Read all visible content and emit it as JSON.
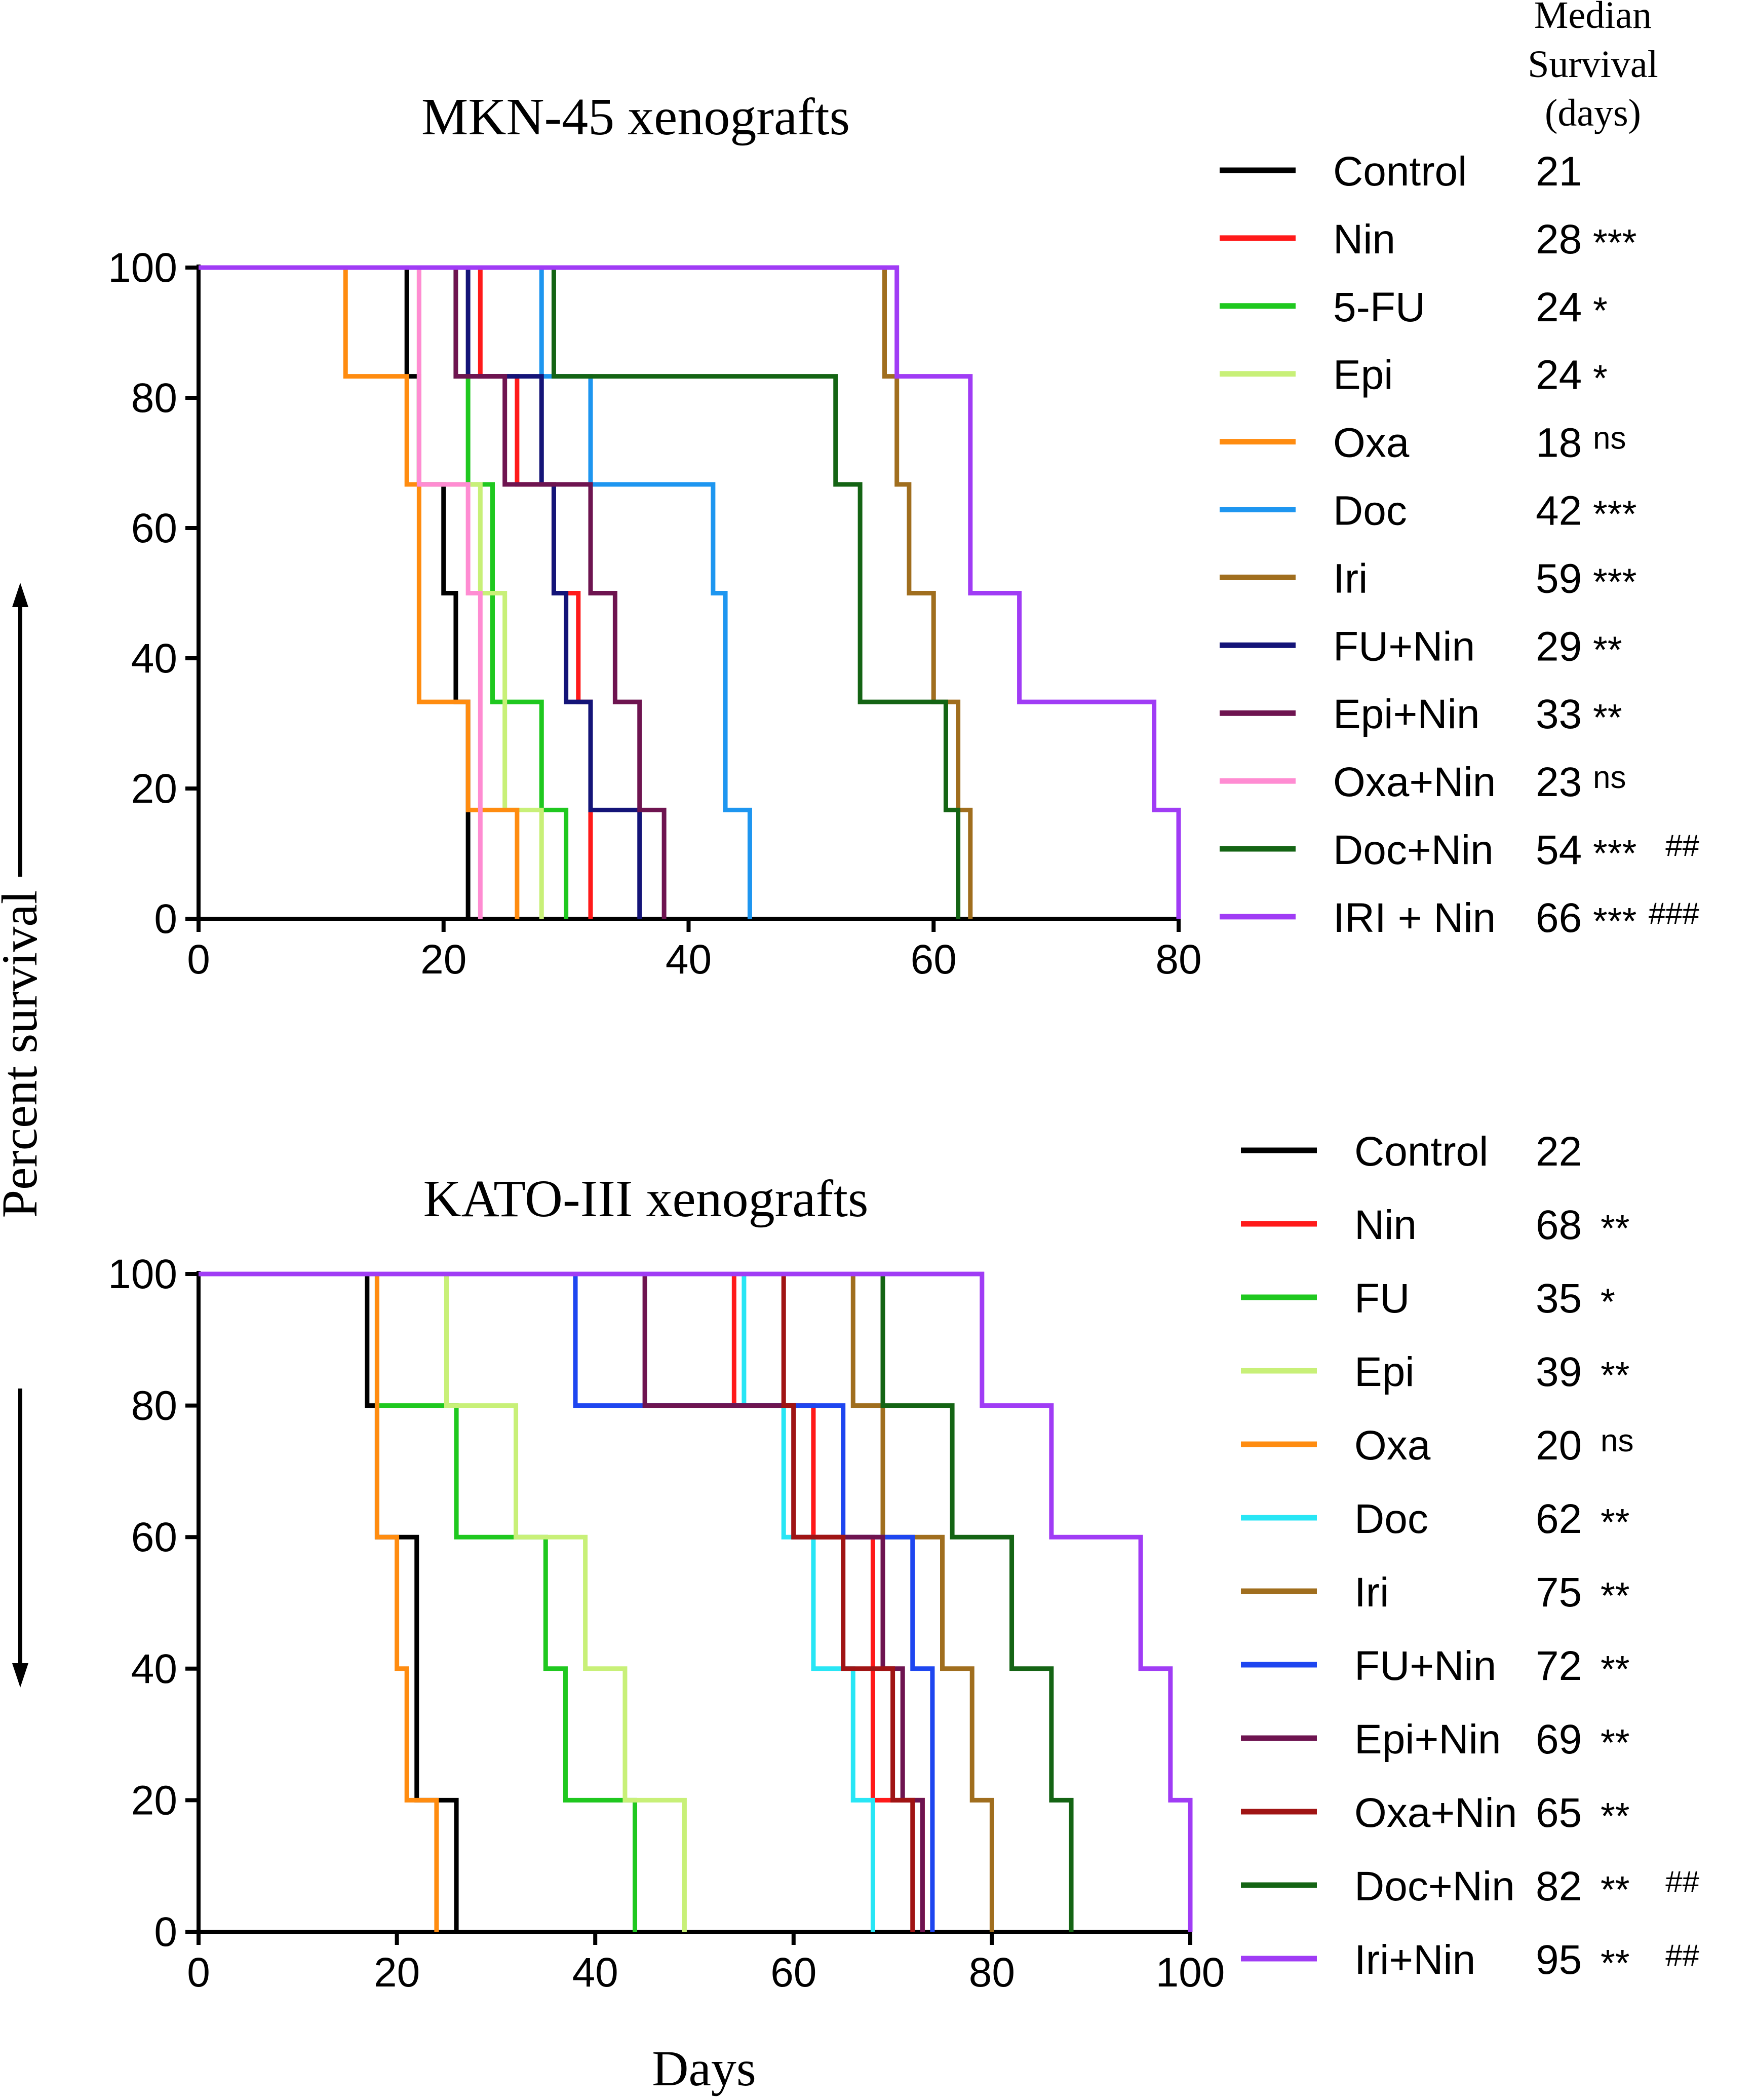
{
  "figure": {
    "y_axis_label": "Percent survival",
    "x_axis_label": "Days",
    "median_header": [
      "Median",
      "Survival",
      "(days)"
    ]
  },
  "colors": {
    "Control": "#000000",
    "Nin": "#ff1a1a",
    "FU": "#1fc81f",
    "Epi": "#c8f078",
    "Oxa": "#ff8c10",
    "Doc_top": "#1e96f0",
    "Doc_bottom": "#28e6f5",
    "Iri": "#a06e1e",
    "FU+Nin_top": "#141478",
    "FU+Nin_bottom": "#1e46f0",
    "Epi+Nin": "#6e1450",
    "Oxa+Nin_top": "#ff8cd2",
    "Oxa+Nin_bottom": "#a01414",
    "Doc+Nin": "#146414",
    "Iri+Nin": "#a03cf5"
  },
  "chart_data": [
    {
      "type": "line",
      "subtype": "kaplan-meier-step",
      "title": "MKN-45 xenografts",
      "xlabel": "Days",
      "ylabel": "Percent survival",
      "xlim": [
        0,
        80
      ],
      "ylim": [
        0,
        100
      ],
      "xticks": [
        0,
        20,
        40,
        60,
        80
      ],
      "yticks": [
        0,
        20,
        40,
        60,
        80,
        100
      ],
      "series": [
        {
          "name": "Control",
          "color_key": "Control",
          "median": "21",
          "sig": "",
          "sig2": "",
          "x": [
            0,
            17,
            18,
            20,
            21,
            22
          ],
          "y": [
            100,
            83.3,
            66.7,
            50,
            33.3,
            0
          ]
        },
        {
          "name": "Nin",
          "color_key": "Nin",
          "median": "28",
          "sig": "***",
          "sig2": "",
          "x": [
            0,
            23,
            26,
            29,
            31,
            32
          ],
          "y": [
            100,
            83.3,
            66.7,
            50,
            33.3,
            0
          ]
        },
        {
          "name": "5-FU",
          "color_key": "FU",
          "median": "24",
          "sig": "*",
          "sig2": "",
          "x": [
            0,
            21,
            22,
            24,
            28,
            30
          ],
          "y": [
            100,
            83.3,
            66.7,
            33.3,
            16.7,
            0
          ]
        },
        {
          "name": "Epi",
          "color_key": "Epi",
          "median": "24",
          "sig": "*",
          "sig2": "",
          "x": [
            0,
            18,
            23,
            25,
            28
          ],
          "y": [
            100,
            66.7,
            50,
            16.7,
            0
          ]
        },
        {
          "name": "Oxa",
          "color_key": "Oxa",
          "median": "18",
          "sig": "ns",
          "sig2": "",
          "x": [
            0,
            12,
            17,
            18,
            22,
            26
          ],
          "y": [
            100,
            83.3,
            66.7,
            33.3,
            16.7,
            0
          ]
        },
        {
          "name": "Doc",
          "color_key": "Doc_top",
          "median": "42",
          "sig": "***",
          "sig2": "",
          "x": [
            0,
            28,
            32,
            42,
            43,
            45
          ],
          "y": [
            100,
            83.3,
            66.7,
            50,
            16.7,
            0
          ]
        },
        {
          "name": "Iri",
          "color_key": "Iri",
          "median": "59",
          "sig": "***",
          "sig2": "",
          "x": [
            0,
            56,
            57,
            58,
            60,
            62,
            63
          ],
          "y": [
            100,
            83.3,
            66.7,
            50,
            33.3,
            16.7,
            0
          ]
        },
        {
          "name": "FU+Nin",
          "color_key": "FU+Nin_top",
          "median": "29",
          "sig": "**",
          "sig2": "",
          "x": [
            0,
            22,
            28,
            29,
            30,
            32,
            36
          ],
          "y": [
            100,
            83.3,
            66.7,
            50,
            33.3,
            16.7,
            0
          ]
        },
        {
          "name": "Epi+Nin",
          "color_key": "Epi+Nin",
          "median": "33",
          "sig": "**",
          "sig2": "",
          "x": [
            0,
            21,
            25,
            32,
            34,
            36,
            38
          ],
          "y": [
            100,
            83.3,
            66.7,
            50,
            33.3,
            16.7,
            0
          ]
        },
        {
          "name": "Oxa+Nin",
          "color_key": "Oxa+Nin_top",
          "median": "23",
          "sig": "ns",
          "sig2": "",
          "x": [
            0,
            18,
            22,
            23
          ],
          "y": [
            100,
            66.7,
            50,
            0
          ]
        },
        {
          "name": "Doc+Nin",
          "color_key": "Doc+Nin",
          "median": "54",
          "sig": "***",
          "sig2": "##",
          "x": [
            0,
            29,
            52,
            54,
            61,
            62
          ],
          "y": [
            100,
            83.3,
            66.7,
            33.3,
            16.7,
            0
          ]
        },
        {
          "name": "IRI + Nin",
          "color_key": "Iri+Nin",
          "median": "66",
          "sig": "***",
          "sig2": "###",
          "x": [
            0,
            57,
            63,
            67,
            78,
            80
          ],
          "y": [
            100,
            83.3,
            50,
            33.3,
            16.7,
            0
          ]
        }
      ]
    },
    {
      "type": "line",
      "subtype": "kaplan-meier-step",
      "title": "KATO-III xenografts",
      "xlabel": "Days",
      "ylabel": "Percent survival",
      "xlim": [
        0,
        100
      ],
      "ylim": [
        0,
        100
      ],
      "xticks": [
        0,
        20,
        40,
        60,
        80,
        100
      ],
      "yticks": [
        0,
        20,
        40,
        60,
        80,
        100
      ],
      "series": [
        {
          "name": "Control",
          "color_key": "Control",
          "median": "22",
          "sig": "",
          "sig2": "",
          "x": [
            0,
            17,
            18,
            22,
            26
          ],
          "y": [
            100,
            80,
            60,
            20,
            0
          ]
        },
        {
          "name": "Nin",
          "color_key": "Nin",
          "median": "68",
          "sig": "**",
          "sig2": "",
          "x": [
            0,
            54,
            62,
            68,
            73
          ],
          "y": [
            100,
            80,
            60,
            20,
            0
          ]
        },
        {
          "name": "FU",
          "color_key": "FU",
          "median": "35",
          "sig": "*",
          "sig2": "",
          "x": [
            0,
            18,
            26,
            35,
            37,
            44
          ],
          "y": [
            100,
            80,
            60,
            40,
            20,
            0
          ]
        },
        {
          "name": "Epi",
          "color_key": "Epi",
          "median": "39",
          "sig": "**",
          "sig2": "",
          "x": [
            0,
            25,
            32,
            39,
            43,
            49
          ],
          "y": [
            100,
            80,
            60,
            40,
            20,
            0
          ]
        },
        {
          "name": "Oxa",
          "color_key": "Oxa",
          "median": "20",
          "sig": "ns",
          "sig2": "",
          "x": [
            0,
            18,
            20,
            21,
            24
          ],
          "y": [
            100,
            60,
            40,
            20,
            0
          ]
        },
        {
          "name": "Doc",
          "color_key": "Doc_bottom",
          "median": "62",
          "sig": "**",
          "sig2": "",
          "x": [
            0,
            55,
            59,
            62,
            66,
            68
          ],
          "y": [
            100,
            80,
            60,
            40,
            20,
            0
          ]
        },
        {
          "name": "Iri",
          "color_key": "Iri",
          "median": "75",
          "sig": "**",
          "sig2": "",
          "x": [
            0,
            66,
            69,
            75,
            78,
            80
          ],
          "y": [
            100,
            80,
            60,
            40,
            20,
            0
          ]
        },
        {
          "name": "FU+Nin",
          "color_key": "FU+Nin_bottom",
          "median": "72",
          "sig": "**",
          "sig2": "",
          "x": [
            0,
            38,
            65,
            72,
            74
          ],
          "y": [
            100,
            80,
            60,
            40,
            0
          ]
        },
        {
          "name": "Epi+Nin",
          "color_key": "Epi+Nin",
          "median": "69",
          "sig": "**",
          "sig2": "",
          "x": [
            0,
            45,
            60,
            69,
            71,
            73
          ],
          "y": [
            100,
            80,
            60,
            40,
            20,
            0
          ]
        },
        {
          "name": "Oxa+Nin",
          "color_key": "Oxa+Nin_bottom",
          "median": "65",
          "sig": "**",
          "sig2": "",
          "x": [
            0,
            59,
            60,
            65,
            70,
            72
          ],
          "y": [
            100,
            80,
            60,
            40,
            20,
            0
          ]
        },
        {
          "name": "Doc+Nin",
          "color_key": "Doc+Nin",
          "median": "82",
          "sig": "**",
          "sig2": "##",
          "x": [
            0,
            69,
            76,
            82,
            86,
            88
          ],
          "y": [
            100,
            80,
            60,
            40,
            20,
            0
          ]
        },
        {
          "name": "Iri+Nin",
          "color_key": "Iri+Nin",
          "median": "95",
          "sig": "**",
          "sig2": "##",
          "x": [
            0,
            79,
            86,
            95,
            98,
            100
          ],
          "y": [
            100,
            80,
            60,
            40,
            20,
            0
          ]
        }
      ]
    }
  ]
}
